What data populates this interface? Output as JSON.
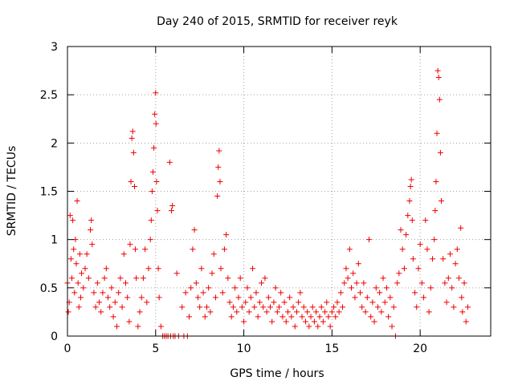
{
  "chart_data": {
    "type": "scatter",
    "title": "Day 240 of 2015, SRMTID for receiver reyk",
    "xlabel": "GPS time / hours",
    "ylabel": "SRMTID / TECUs",
    "xlim": [
      0,
      24
    ],
    "ylim": [
      0,
      3
    ],
    "xticks": [
      0,
      5,
      10,
      15,
      20
    ],
    "yticks": [
      0,
      0.5,
      1,
      1.5,
      2,
      2.5,
      3
    ],
    "xtick_labels": [
      "0",
      "5",
      "10",
      "15",
      "20"
    ],
    "ytick_labels": [
      "0",
      "0.5",
      "1",
      "1.5",
      "2",
      "2.5",
      "3"
    ],
    "grid": true,
    "marker": "+",
    "marker_color": "#ee0000",
    "series": [
      {
        "name": "reyk",
        "points": [
          [
            0.0,
            0.55
          ],
          [
            0.05,
            0.25
          ],
          [
            0.1,
            0.35
          ],
          [
            0.15,
            1.25
          ],
          [
            0.2,
            0.8
          ],
          [
            0.25,
            0.6
          ],
          [
            0.3,
            1.2
          ],
          [
            0.35,
            0.9
          ],
          [
            0.4,
            0.45
          ],
          [
            0.45,
            1.0
          ],
          [
            0.5,
            0.75
          ],
          [
            0.55,
            1.4
          ],
          [
            0.6,
            0.55
          ],
          [
            0.65,
            0.3
          ],
          [
            0.7,
            0.85
          ],
          [
            0.75,
            0.4
          ],
          [
            0.8,
            0.65
          ],
          [
            0.9,
            0.5
          ],
          [
            1.0,
            0.7
          ],
          [
            1.1,
            0.85
          ],
          [
            1.2,
            0.6
          ],
          [
            1.3,
            1.1
          ],
          [
            1.35,
            1.2
          ],
          [
            1.4,
            0.95
          ],
          [
            1.5,
            0.45
          ],
          [
            1.6,
            0.3
          ],
          [
            1.7,
            0.55
          ],
          [
            1.8,
            0.35
          ],
          [
            1.9,
            0.25
          ],
          [
            2.0,
            0.45
          ],
          [
            2.1,
            0.6
          ],
          [
            2.2,
            0.7
          ],
          [
            2.3,
            0.4
          ],
          [
            2.4,
            0.3
          ],
          [
            2.5,
            0.5
          ],
          [
            2.6,
            0.2
          ],
          [
            2.7,
            0.35
          ],
          [
            2.8,
            0.1
          ],
          [
            2.9,
            0.45
          ],
          [
            3.0,
            0.6
          ],
          [
            3.1,
            0.3
          ],
          [
            3.2,
            0.85
          ],
          [
            3.3,
            0.55
          ],
          [
            3.4,
            0.4
          ],
          [
            3.5,
            0.15
          ],
          [
            3.55,
            0.95
          ],
          [
            3.6,
            1.6
          ],
          [
            3.65,
            2.05
          ],
          [
            3.7,
            2.12
          ],
          [
            3.75,
            1.9
          ],
          [
            3.8,
            1.55
          ],
          [
            3.85,
            0.9
          ],
          [
            3.9,
            0.6
          ],
          [
            4.0,
            0.1
          ],
          [
            4.1,
            0.25
          ],
          [
            4.2,
            0.4
          ],
          [
            4.3,
            0.6
          ],
          [
            4.4,
            0.9
          ],
          [
            4.5,
            0.35
          ],
          [
            4.6,
            0.7
          ],
          [
            4.7,
            1.0
          ],
          [
            4.75,
            1.2
          ],
          [
            4.8,
            1.5
          ],
          [
            4.85,
            1.7
          ],
          [
            4.9,
            1.95
          ],
          [
            4.95,
            2.3
          ],
          [
            5.0,
            2.52
          ],
          [
            5.02,
            2.2
          ],
          [
            5.05,
            1.6
          ],
          [
            5.1,
            1.3
          ],
          [
            5.15,
            0.7
          ],
          [
            5.2,
            0.4
          ],
          [
            5.3,
            0.1
          ],
          [
            5.4,
            0.0
          ],
          [
            5.5,
            0.0
          ],
          [
            5.6,
            0.0
          ],
          [
            5.7,
            0.0
          ],
          [
            5.8,
            1.8
          ],
          [
            5.85,
            0.0
          ],
          [
            5.9,
            1.3
          ],
          [
            5.95,
            1.35
          ],
          [
            6.0,
            0.0
          ],
          [
            6.1,
            0.0
          ],
          [
            6.2,
            0.65
          ],
          [
            6.3,
            0.0
          ],
          [
            6.5,
            0.3
          ],
          [
            6.6,
            0.0
          ],
          [
            6.7,
            0.45
          ],
          [
            6.8,
            0.0
          ],
          [
            6.9,
            0.2
          ],
          [
            7.0,
            0.5
          ],
          [
            7.1,
            0.9
          ],
          [
            7.2,
            1.1
          ],
          [
            7.3,
            0.55
          ],
          [
            7.4,
            0.4
          ],
          [
            7.5,
            0.3
          ],
          [
            7.6,
            0.7
          ],
          [
            7.7,
            0.45
          ],
          [
            7.8,
            0.2
          ],
          [
            7.9,
            0.3
          ],
          [
            8.0,
            0.5
          ],
          [
            8.1,
            0.25
          ],
          [
            8.2,
            0.65
          ],
          [
            8.3,
            0.85
          ],
          [
            8.4,
            0.4
          ],
          [
            8.5,
            1.45
          ],
          [
            8.55,
            1.75
          ],
          [
            8.6,
            1.92
          ],
          [
            8.65,
            1.6
          ],
          [
            8.7,
            0.7
          ],
          [
            8.8,
            0.45
          ],
          [
            8.9,
            0.9
          ],
          [
            9.0,
            1.05
          ],
          [
            9.1,
            0.6
          ],
          [
            9.2,
            0.35
          ],
          [
            9.3,
            0.2
          ],
          [
            9.4,
            0.3
          ],
          [
            9.5,
            0.5
          ],
          [
            9.6,
            0.25
          ],
          [
            9.7,
            0.4
          ],
          [
            9.8,
            0.6
          ],
          [
            9.9,
            0.3
          ],
          [
            10.0,
            0.15
          ],
          [
            10.1,
            0.35
          ],
          [
            10.2,
            0.5
          ],
          [
            10.3,
            0.25
          ],
          [
            10.4,
            0.4
          ],
          [
            10.5,
            0.7
          ],
          [
            10.6,
            0.3
          ],
          [
            10.7,
            0.45
          ],
          [
            10.8,
            0.2
          ],
          [
            10.9,
            0.35
          ],
          [
            11.0,
            0.55
          ],
          [
            11.1,
            0.3
          ],
          [
            11.2,
            0.6
          ],
          [
            11.3,
            0.25
          ],
          [
            11.4,
            0.4
          ],
          [
            11.5,
            0.3
          ],
          [
            11.6,
            0.15
          ],
          [
            11.7,
            0.35
          ],
          [
            11.8,
            0.5
          ],
          [
            11.9,
            0.25
          ],
          [
            12.0,
            0.3
          ],
          [
            12.1,
            0.45
          ],
          [
            12.2,
            0.2
          ],
          [
            12.3,
            0.35
          ],
          [
            12.4,
            0.15
          ],
          [
            12.5,
            0.25
          ],
          [
            12.6,
            0.4
          ],
          [
            12.7,
            0.2
          ],
          [
            12.8,
            0.3
          ],
          [
            12.9,
            0.1
          ],
          [
            13.0,
            0.25
          ],
          [
            13.1,
            0.35
          ],
          [
            13.2,
            0.45
          ],
          [
            13.3,
            0.2
          ],
          [
            13.4,
            0.3
          ],
          [
            13.5,
            0.15
          ],
          [
            13.6,
            0.25
          ],
          [
            13.7,
            0.1
          ],
          [
            13.8,
            0.2
          ],
          [
            13.9,
            0.3
          ],
          [
            14.0,
            0.15
          ],
          [
            14.1,
            0.25
          ],
          [
            14.2,
            0.1
          ],
          [
            14.3,
            0.2
          ],
          [
            14.4,
            0.3
          ],
          [
            14.5,
            0.15
          ],
          [
            14.6,
            0.25
          ],
          [
            14.7,
            0.35
          ],
          [
            14.8,
            0.2
          ],
          [
            14.9,
            0.1
          ],
          [
            15.0,
            0.25
          ],
          [
            15.1,
            0.3
          ],
          [
            15.2,
            0.2
          ],
          [
            15.3,
            0.35
          ],
          [
            15.4,
            0.25
          ],
          [
            15.5,
            0.45
          ],
          [
            15.6,
            0.3
          ],
          [
            15.7,
            0.55
          ],
          [
            15.8,
            0.7
          ],
          [
            15.9,
            0.6
          ],
          [
            16.0,
            0.9
          ],
          [
            16.1,
            0.5
          ],
          [
            16.2,
            0.65
          ],
          [
            16.3,
            0.4
          ],
          [
            16.4,
            0.55
          ],
          [
            16.5,
            0.75
          ],
          [
            16.6,
            0.45
          ],
          [
            16.7,
            0.3
          ],
          [
            16.8,
            0.55
          ],
          [
            16.9,
            0.25
          ],
          [
            17.0,
            0.4
          ],
          [
            17.1,
            1.0
          ],
          [
            17.2,
            0.2
          ],
          [
            17.3,
            0.35
          ],
          [
            17.4,
            0.15
          ],
          [
            17.5,
            0.5
          ],
          [
            17.6,
            0.3
          ],
          [
            17.7,
            0.45
          ],
          [
            17.8,
            0.25
          ],
          [
            17.9,
            0.6
          ],
          [
            18.0,
            0.35
          ],
          [
            18.1,
            0.5
          ],
          [
            18.2,
            0.2
          ],
          [
            18.3,
            0.4
          ],
          [
            18.4,
            0.1
          ],
          [
            18.5,
            0.3
          ],
          [
            18.6,
            0.0
          ],
          [
            18.7,
            0.55
          ],
          [
            18.8,
            0.65
          ],
          [
            18.9,
            1.1
          ],
          [
            19.0,
            0.9
          ],
          [
            19.1,
            0.7
          ],
          [
            19.2,
            1.05
          ],
          [
            19.3,
            1.25
          ],
          [
            19.4,
            1.4
          ],
          [
            19.45,
            1.55
          ],
          [
            19.5,
            1.62
          ],
          [
            19.55,
            1.2
          ],
          [
            19.6,
            0.8
          ],
          [
            19.7,
            0.45
          ],
          [
            19.8,
            0.3
          ],
          [
            19.9,
            0.7
          ],
          [
            20.0,
            0.95
          ],
          [
            20.1,
            0.55
          ],
          [
            20.2,
            0.4
          ],
          [
            20.3,
            1.2
          ],
          [
            20.4,
            0.9
          ],
          [
            20.5,
            0.25
          ],
          [
            20.6,
            0.5
          ],
          [
            20.7,
            0.8
          ],
          [
            20.8,
            1.0
          ],
          [
            20.85,
            1.3
          ],
          [
            20.9,
            1.6
          ],
          [
            20.95,
            2.1
          ],
          [
            21.0,
            2.75
          ],
          [
            21.05,
            2.68
          ],
          [
            21.1,
            2.45
          ],
          [
            21.15,
            1.9
          ],
          [
            21.2,
            1.4
          ],
          [
            21.3,
            0.8
          ],
          [
            21.4,
            0.55
          ],
          [
            21.5,
            0.35
          ],
          [
            21.6,
            0.6
          ],
          [
            21.7,
            0.85
          ],
          [
            21.8,
            0.5
          ],
          [
            21.9,
            0.3
          ],
          [
            22.0,
            0.75
          ],
          [
            22.1,
            0.9
          ],
          [
            22.2,
            0.6
          ],
          [
            22.3,
            1.12
          ],
          [
            22.35,
            0.4
          ],
          [
            22.4,
            0.25
          ],
          [
            22.5,
            0.55
          ],
          [
            22.6,
            0.15
          ],
          [
            22.7,
            0.3
          ]
        ]
      }
    ]
  }
}
